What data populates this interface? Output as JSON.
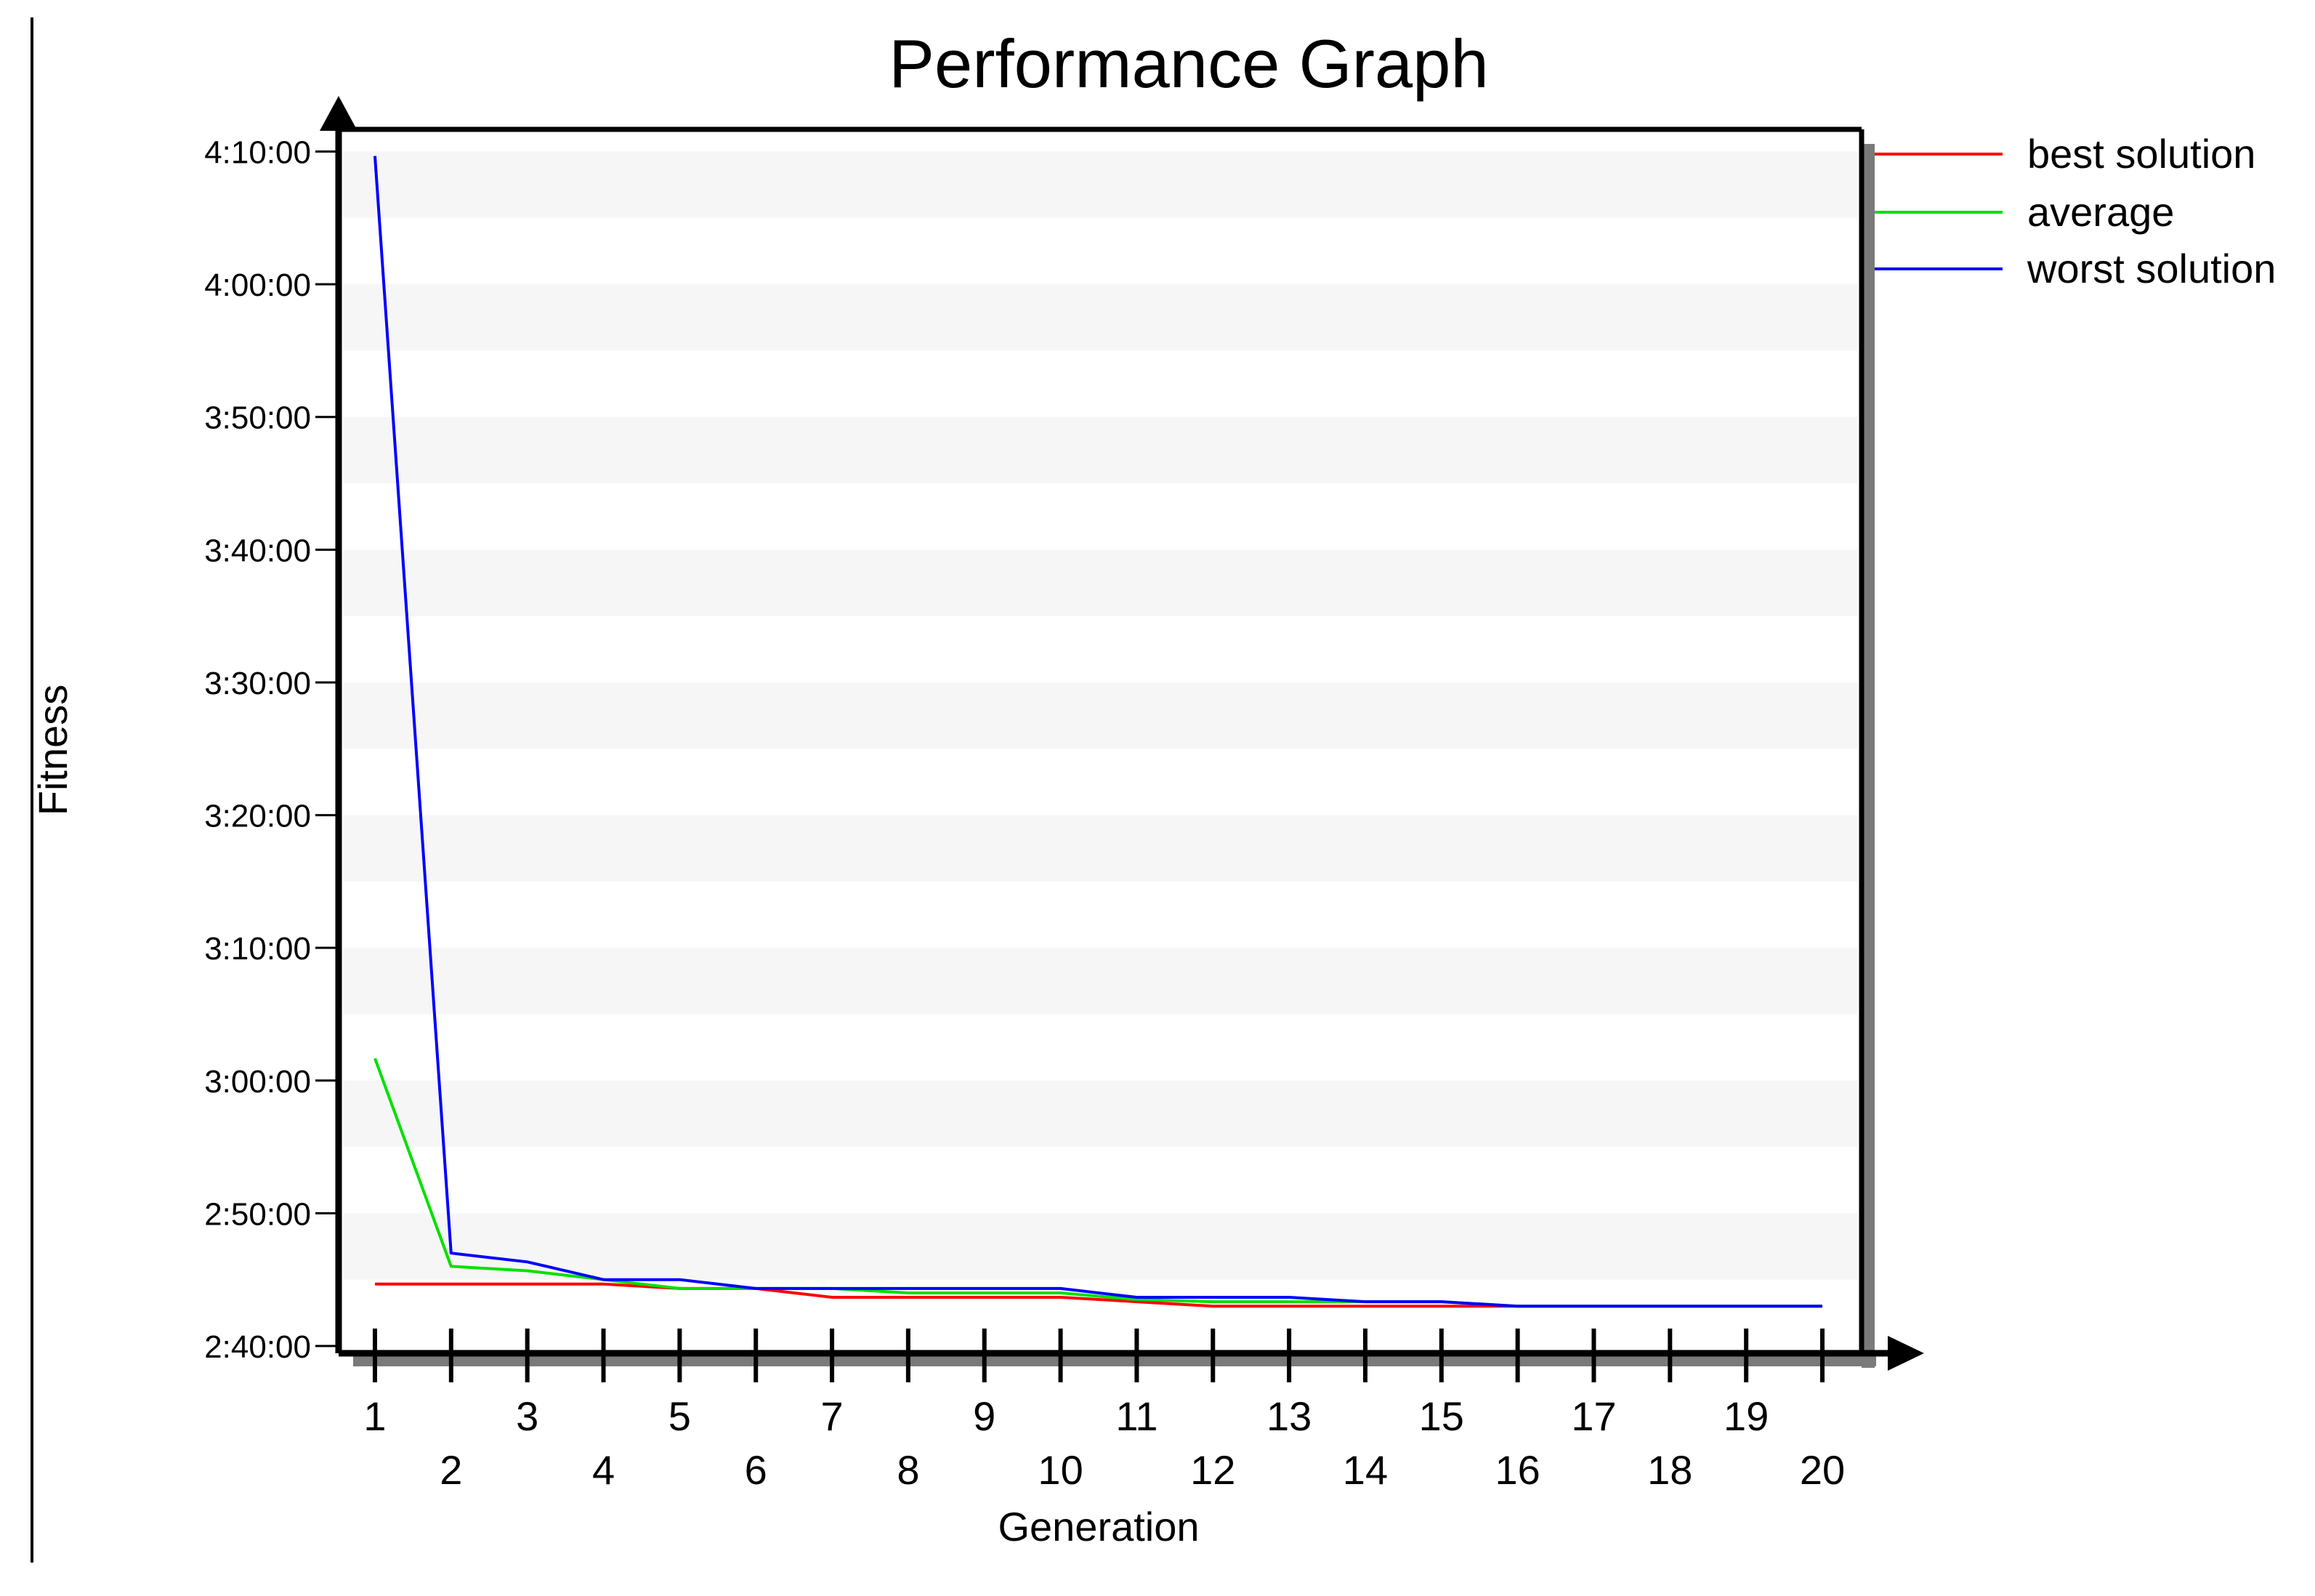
{
  "chart_data": {
    "type": "line",
    "title": "Performance Graph",
    "xlabel": "Generation",
    "ylabel": "Fitness",
    "x": [
      1,
      2,
      3,
      4,
      5,
      6,
      7,
      8,
      9,
      10,
      11,
      12,
      13,
      14,
      15,
      16,
      17,
      18,
      19,
      20
    ],
    "y_unit": "h:mm:ss",
    "ylim": [
      "2:40:00",
      "4:12:00"
    ],
    "yticks": [
      "2:40:00",
      "2:50:00",
      "3:00:00",
      "3:10:00",
      "3:20:00",
      "3:30:00",
      "3:40:00",
      "3:50:00",
      "4:00:00",
      "4:10:00"
    ],
    "xticks": [
      1,
      2,
      3,
      4,
      5,
      6,
      7,
      8,
      9,
      10,
      11,
      12,
      13,
      14,
      15,
      16,
      17,
      18,
      19,
      20
    ],
    "grid": "alternating horizontal bands",
    "legend_position": "top-right, outside plot",
    "series": [
      {
        "name": "best solution",
        "color": "#ff0000",
        "values": [
          "2:44:40",
          "2:44:40",
          "2:44:40",
          "2:44:40",
          "2:44:20",
          "2:44:20",
          "2:43:40",
          "2:43:40",
          "2:43:40",
          "2:43:40",
          "2:43:20",
          "2:43:00",
          "2:43:00",
          "2:43:00",
          "2:43:00",
          "2:43:00",
          "2:43:00",
          "2:43:00",
          "2:43:00",
          "2:43:00"
        ]
      },
      {
        "name": "average",
        "color": "#00e000",
        "values": [
          "3:01:40",
          "2:46:00",
          "2:45:40",
          "2:45:00",
          "2:44:20",
          "2:44:20",
          "2:44:20",
          "2:44:00",
          "2:44:00",
          "2:44:00",
          "2:43:30",
          "2:43:20",
          "2:43:20",
          "2:43:20",
          "2:43:20",
          "2:43:00",
          "2:43:00",
          "2:43:00",
          "2:43:00",
          "2:43:00"
        ]
      },
      {
        "name": "worst solution",
        "color": "#0000ff",
        "values": [
          "4:09:40",
          "2:47:00",
          "2:46:20",
          "2:45:00",
          "2:45:00",
          "2:44:20",
          "2:44:20",
          "2:44:20",
          "2:44:20",
          "2:44:20",
          "2:43:40",
          "2:43:40",
          "2:43:40",
          "2:43:20",
          "2:43:20",
          "2:43:00",
          "2:43:00",
          "2:43:00",
          "2:43:00",
          "2:43:00"
        ]
      }
    ]
  }
}
